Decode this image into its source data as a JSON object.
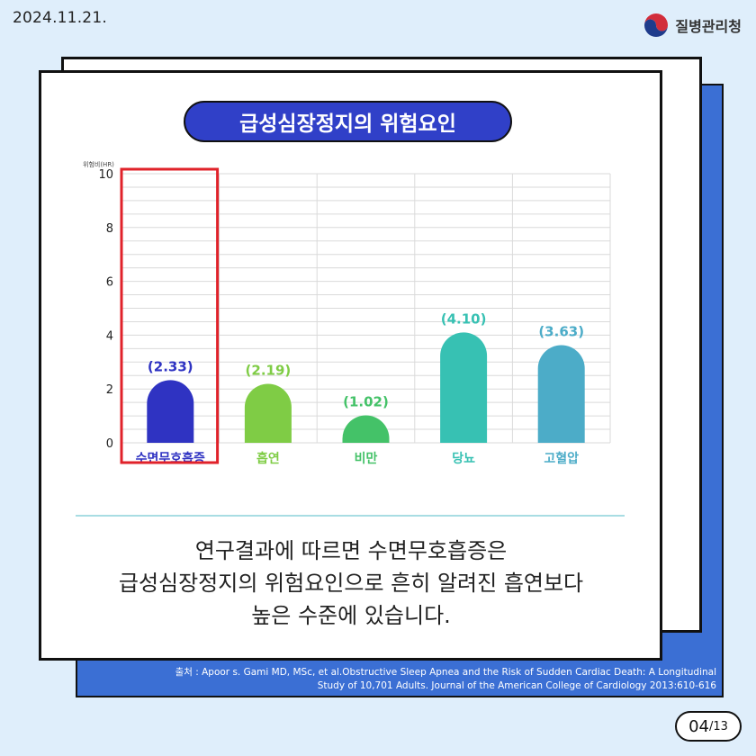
{
  "date": "2024.11.21.",
  "logo": {
    "text": "질병관리청",
    "icon": "kdca-logo-icon"
  },
  "chart_data": {
    "type": "bar",
    "title": "급성심장정지의 위험요인",
    "ylabel": "위험비(HR)",
    "xlabel": "",
    "ylim": [
      0,
      10
    ],
    "yticks": [
      0,
      2,
      4,
      6,
      8,
      10
    ],
    "grid": true,
    "categories": [
      "수면무호흡증",
      "흡연",
      "비만",
      "당뇨",
      "고혈압"
    ],
    "values": [
      2.33,
      2.19,
      1.02,
      4.1,
      3.63
    ],
    "value_labels": [
      "(2.33)",
      "(2.19)",
      "(1.02)",
      "(4.10)",
      "(3.63)"
    ],
    "colors": [
      "#2f33c2",
      "#7fcc45",
      "#44c268",
      "#37c1b3",
      "#4cacc8"
    ],
    "label_colors": [
      "#2f33c2",
      "#7fcc45",
      "#44c268",
      "#37c1b3",
      "#4cacc8"
    ],
    "highlight_index": 0,
    "highlight_color": "#e0222a"
  },
  "message": {
    "lines": [
      "연구결과에 따르면 수면무호흡증은",
      "급성심장정지의 위험요인으로 흔히 알려진 흡연보다",
      "높은 수준에 있습니다."
    ]
  },
  "source": {
    "lines": [
      "출처 : Apoor s. Gami MD, MSc, et al.Obstructive Sleep Apnea and the Risk of Sudden Cardiac Death: A Longitudinal",
      "Study of 10,701 Adults. Journal of the American College of Cardiology 2013:610-616"
    ]
  },
  "page": {
    "current": "04",
    "total": "/13"
  }
}
